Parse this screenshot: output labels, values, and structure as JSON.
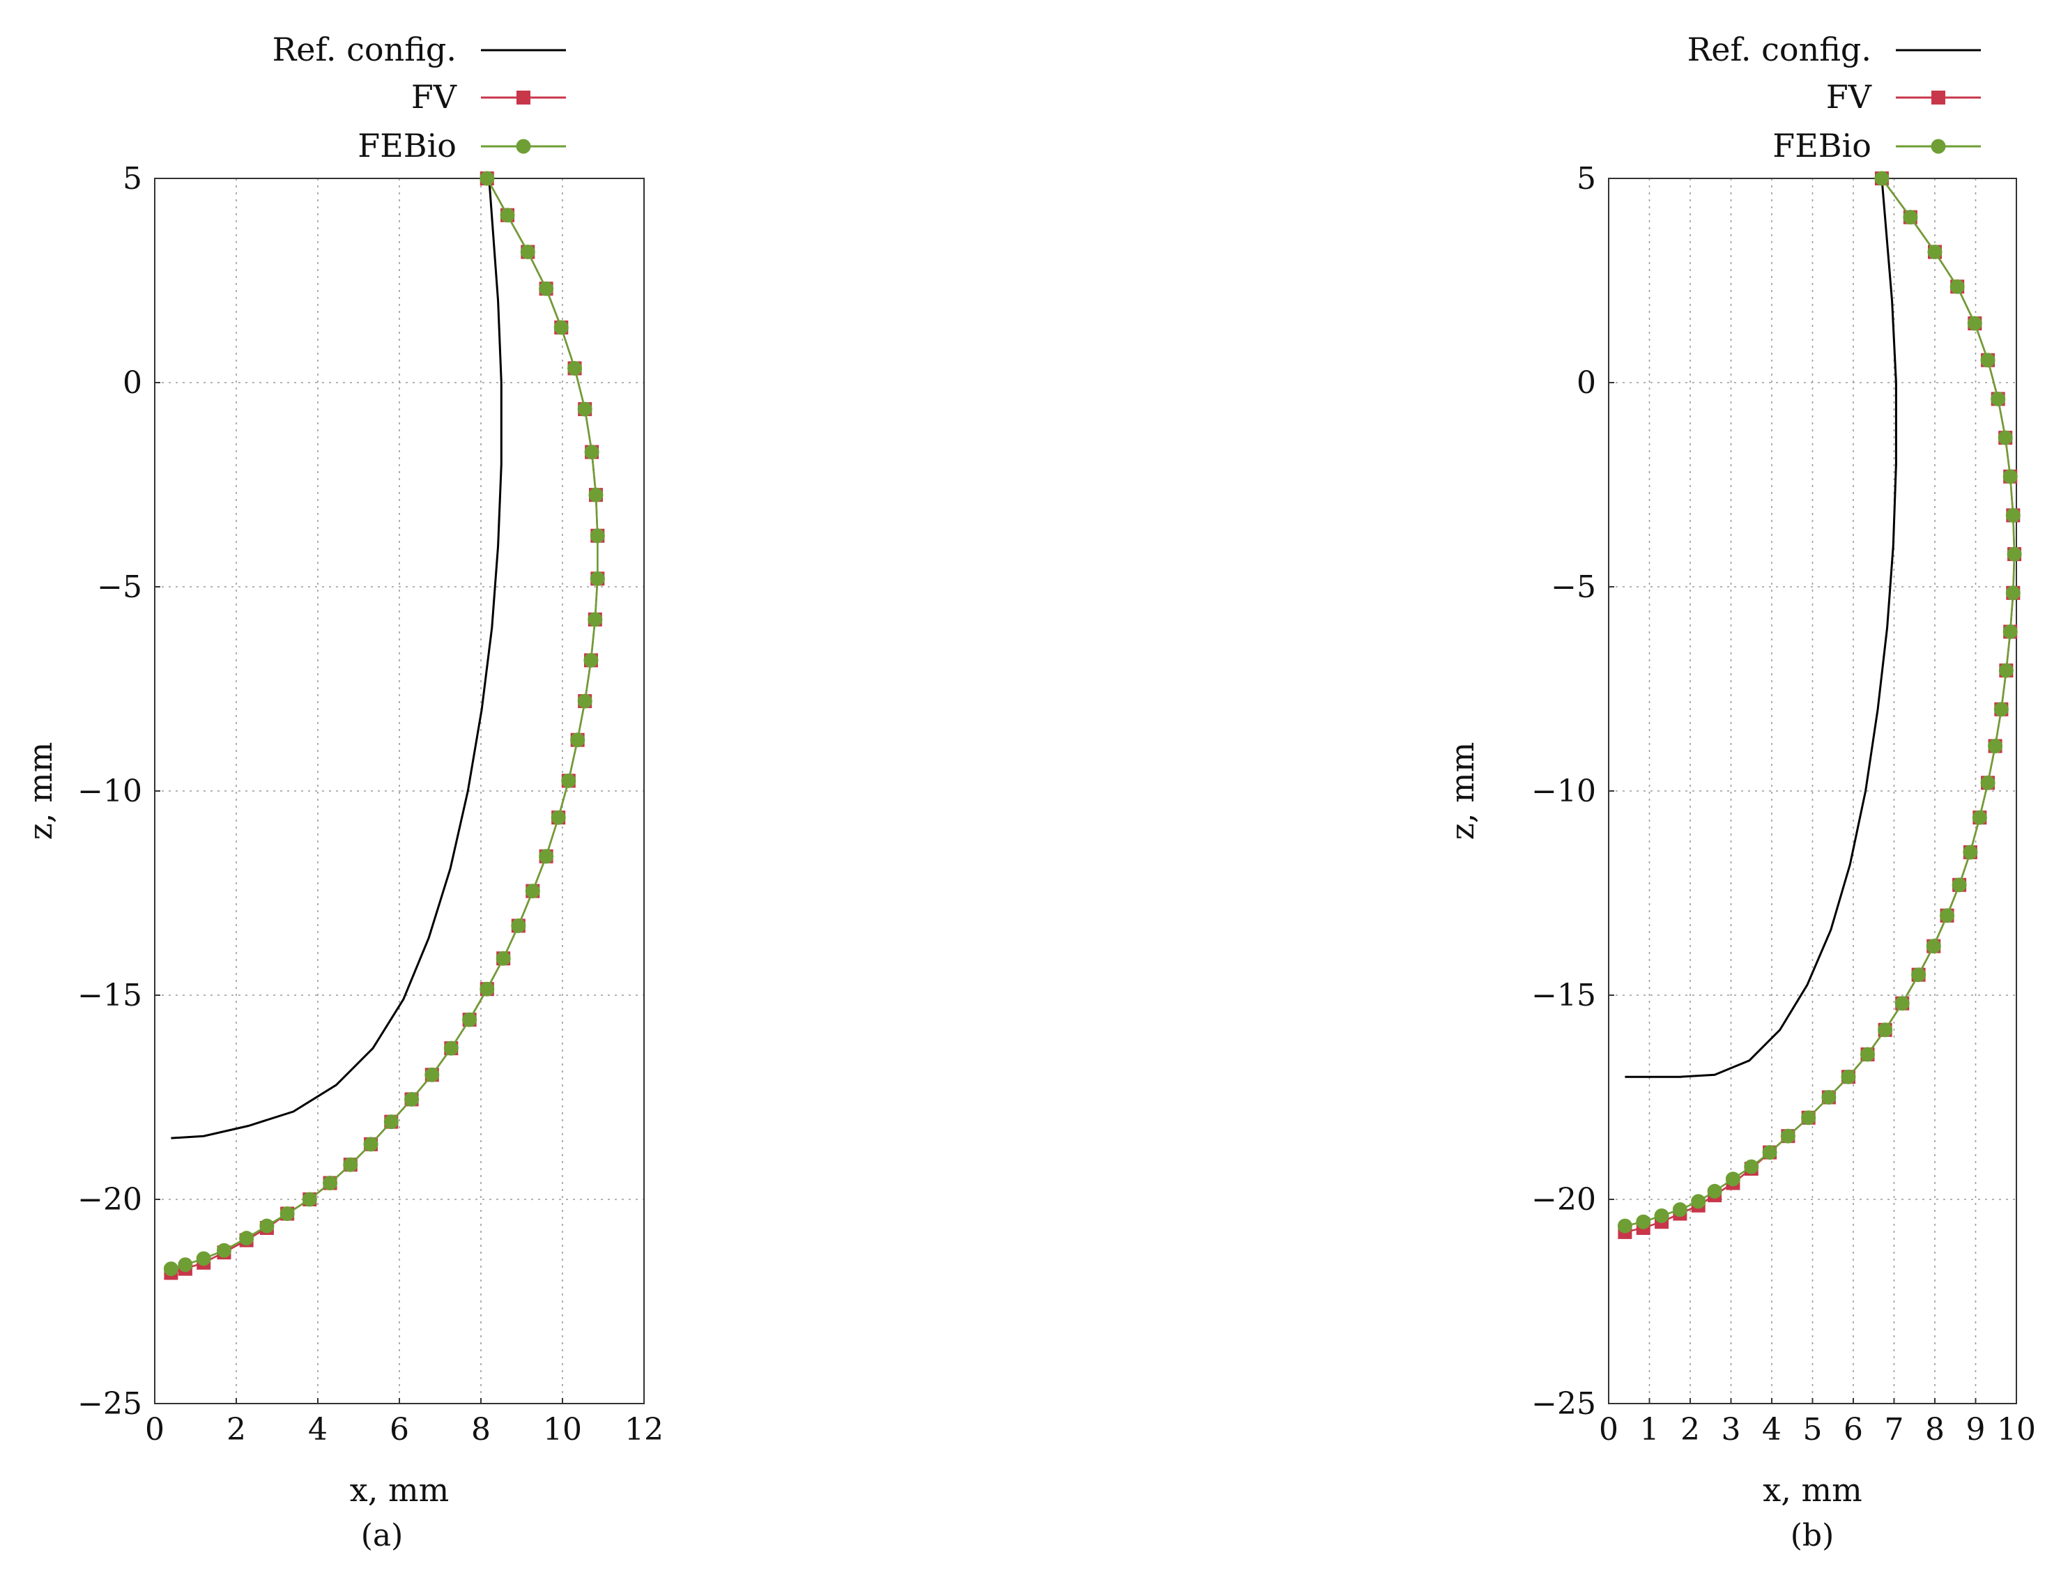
{
  "colors": {
    "ref": "#000000",
    "fv": "#c8364a",
    "febio": "#6e9e34"
  },
  "chart_data": [
    {
      "type": "line",
      "panel_label": "(a)",
      "xlabel": "x, mm",
      "ylabel": "z, mm",
      "xlim": [
        0,
        12
      ],
      "ylim": [
        -25,
        5
      ],
      "x_ticks": [
        0,
        2,
        4,
        6,
        8,
        10,
        12
      ],
      "y_ticks": [
        5,
        0,
        -5,
        -10,
        -15,
        -20,
        -25
      ],
      "x_tick_labels": [
        "0",
        "2",
        "4",
        "6",
        "8",
        "10",
        "12"
      ],
      "y_tick_labels": [
        "5",
        "0",
        "−5",
        "−10",
        "−15",
        "−20",
        "−25"
      ],
      "grid": true,
      "legend_position": "top-left-outside",
      "series": [
        {
          "name": "Ref. config.",
          "color": "#000000",
          "marker": "none",
          "x": [
            8.2,
            8.42,
            8.5,
            8.5,
            8.42,
            8.27,
            8.02,
            7.68,
            7.25,
            6.72,
            6.1,
            5.35,
            4.45,
            3.4,
            2.3,
            1.2,
            0.4
          ],
          "y": [
            5,
            2,
            0,
            -2,
            -4,
            -6,
            -8,
            -10,
            -11.9,
            -13.6,
            -15.1,
            -16.3,
            -17.2,
            -17.85,
            -18.2,
            -18.45,
            -18.5
          ]
        },
        {
          "name": "FV",
          "color": "#c8364a",
          "marker": "square",
          "x": [
            8.15,
            8.65,
            9.15,
            9.6,
            9.97,
            10.3,
            10.55,
            10.72,
            10.82,
            10.86,
            10.86,
            10.8,
            10.7,
            10.55,
            10.37,
            10.15,
            9.9,
            9.6,
            9.27,
            8.92,
            8.55,
            8.15,
            7.72,
            7.27,
            6.8,
            6.3,
            5.8,
            5.3,
            4.8,
            4.3,
            3.8,
            3.25,
            2.75,
            2.25,
            1.7,
            1.2,
            0.75,
            0.4
          ],
          "y": [
            5,
            4.1,
            3.2,
            2.3,
            1.35,
            0.35,
            -0.65,
            -1.7,
            -2.75,
            -3.75,
            -4.8,
            -5.8,
            -6.8,
            -7.8,
            -8.75,
            -9.75,
            -10.65,
            -11.6,
            -12.45,
            -13.3,
            -14.1,
            -14.85,
            -15.6,
            -16.3,
            -16.95,
            -17.55,
            -18.1,
            -18.65,
            -19.15,
            -19.6,
            -20.0,
            -20.35,
            -20.7,
            -21.0,
            -21.3,
            -21.55,
            -21.7,
            -21.8
          ]
        },
        {
          "name": "FEBio",
          "color": "#6e9e34",
          "marker": "circle",
          "x": [
            8.15,
            8.65,
            9.15,
            9.6,
            9.97,
            10.3,
            10.55,
            10.72,
            10.82,
            10.86,
            10.86,
            10.8,
            10.7,
            10.55,
            10.37,
            10.15,
            9.9,
            9.6,
            9.27,
            8.92,
            8.55,
            8.15,
            7.72,
            7.27,
            6.8,
            6.3,
            5.8,
            5.3,
            4.8,
            4.3,
            3.8,
            3.25,
            2.75,
            2.25,
            1.7,
            1.2,
            0.75,
            0.4
          ],
          "y": [
            5,
            4.1,
            3.2,
            2.3,
            1.35,
            0.35,
            -0.65,
            -1.7,
            -2.75,
            -3.75,
            -4.8,
            -5.8,
            -6.8,
            -7.8,
            -8.75,
            -9.75,
            -10.65,
            -11.6,
            -12.45,
            -13.3,
            -14.1,
            -14.85,
            -15.6,
            -16.3,
            -16.95,
            -17.55,
            -18.1,
            -18.65,
            -19.15,
            -19.6,
            -20.0,
            -20.35,
            -20.65,
            -20.95,
            -21.25,
            -21.45,
            -21.6,
            -21.7
          ]
        }
      ]
    },
    {
      "type": "line",
      "panel_label": "(b)",
      "xlabel": "x, mm",
      "ylabel": "z, mm",
      "xlim": [
        0,
        10
      ],
      "ylim": [
        -25,
        5
      ],
      "x_ticks": [
        0,
        1,
        2,
        3,
        4,
        5,
        6,
        7,
        8,
        9,
        10
      ],
      "y_ticks": [
        5,
        0,
        -5,
        -10,
        -15,
        -20,
        -25
      ],
      "x_tick_labels": [
        "0",
        "1",
        "2",
        "3",
        "4",
        "5",
        "6",
        "7",
        "8",
        "9",
        "10"
      ],
      "y_tick_labels": [
        "5",
        "0",
        "−5",
        "−10",
        "−15",
        "−20",
        "−25"
      ],
      "grid": true,
      "legend_position": "top-left-outside",
      "series": [
        {
          "name": "Ref. config.",
          "color": "#000000",
          "marker": "none",
          "x": [
            6.7,
            6.95,
            7.05,
            7.05,
            6.98,
            6.83,
            6.6,
            6.3,
            5.92,
            5.45,
            4.87,
            4.2,
            3.45,
            2.6,
            1.75,
            0.95,
            0.4
          ],
          "y": [
            5,
            2,
            0,
            -2,
            -4,
            -6,
            -8,
            -10,
            -11.8,
            -13.4,
            -14.75,
            -15.85,
            -16.6,
            -16.95,
            -17.0,
            -17.0,
            -17.0
          ]
        },
        {
          "name": "FV",
          "color": "#c8364a",
          "marker": "square",
          "x": [
            6.7,
            7.4,
            8.0,
            8.55,
            8.98,
            9.3,
            9.55,
            9.73,
            9.85,
            9.92,
            9.95,
            9.92,
            9.85,
            9.75,
            9.63,
            9.48,
            9.3,
            9.1,
            8.87,
            8.6,
            8.3,
            7.97,
            7.6,
            7.2,
            6.78,
            6.35,
            5.88,
            5.4,
            4.9,
            4.4,
            3.95,
            3.5,
            3.05,
            2.6,
            2.2,
            1.75,
            1.3,
            0.85,
            0.4
          ],
          "y": [
            5,
            4.05,
            3.2,
            2.35,
            1.45,
            0.55,
            -0.4,
            -1.35,
            -2.3,
            -3.25,
            -4.2,
            -5.15,
            -6.1,
            -7.05,
            -8.0,
            -8.9,
            -9.8,
            -10.65,
            -11.5,
            -12.3,
            -13.05,
            -13.8,
            -14.5,
            -15.2,
            -15.85,
            -16.45,
            -17.0,
            -17.5,
            -18.0,
            -18.45,
            -18.85,
            -19.25,
            -19.6,
            -19.9,
            -20.15,
            -20.35,
            -20.55,
            -20.7,
            -20.8
          ]
        },
        {
          "name": "FEBio",
          "color": "#6e9e34",
          "marker": "circle",
          "x": [
            6.7,
            7.4,
            8.0,
            8.55,
            8.98,
            9.3,
            9.55,
            9.73,
            9.85,
            9.92,
            9.95,
            9.92,
            9.85,
            9.75,
            9.63,
            9.48,
            9.3,
            9.1,
            8.87,
            8.6,
            8.3,
            7.97,
            7.6,
            7.2,
            6.78,
            6.35,
            5.88,
            5.4,
            4.9,
            4.4,
            3.95,
            3.5,
            3.05,
            2.6,
            2.2,
            1.75,
            1.3,
            0.85,
            0.4
          ],
          "y": [
            5,
            4.05,
            3.2,
            2.35,
            1.45,
            0.55,
            -0.4,
            -1.35,
            -2.3,
            -3.25,
            -4.2,
            -5.15,
            -6.1,
            -7.05,
            -8.0,
            -8.9,
            -9.8,
            -10.65,
            -11.5,
            -12.3,
            -13.05,
            -13.8,
            -14.5,
            -15.2,
            -15.85,
            -16.45,
            -17.0,
            -17.5,
            -18.0,
            -18.45,
            -18.85,
            -19.2,
            -19.5,
            -19.8,
            -20.05,
            -20.25,
            -20.4,
            -20.55,
            -20.65
          ]
        }
      ]
    }
  ]
}
